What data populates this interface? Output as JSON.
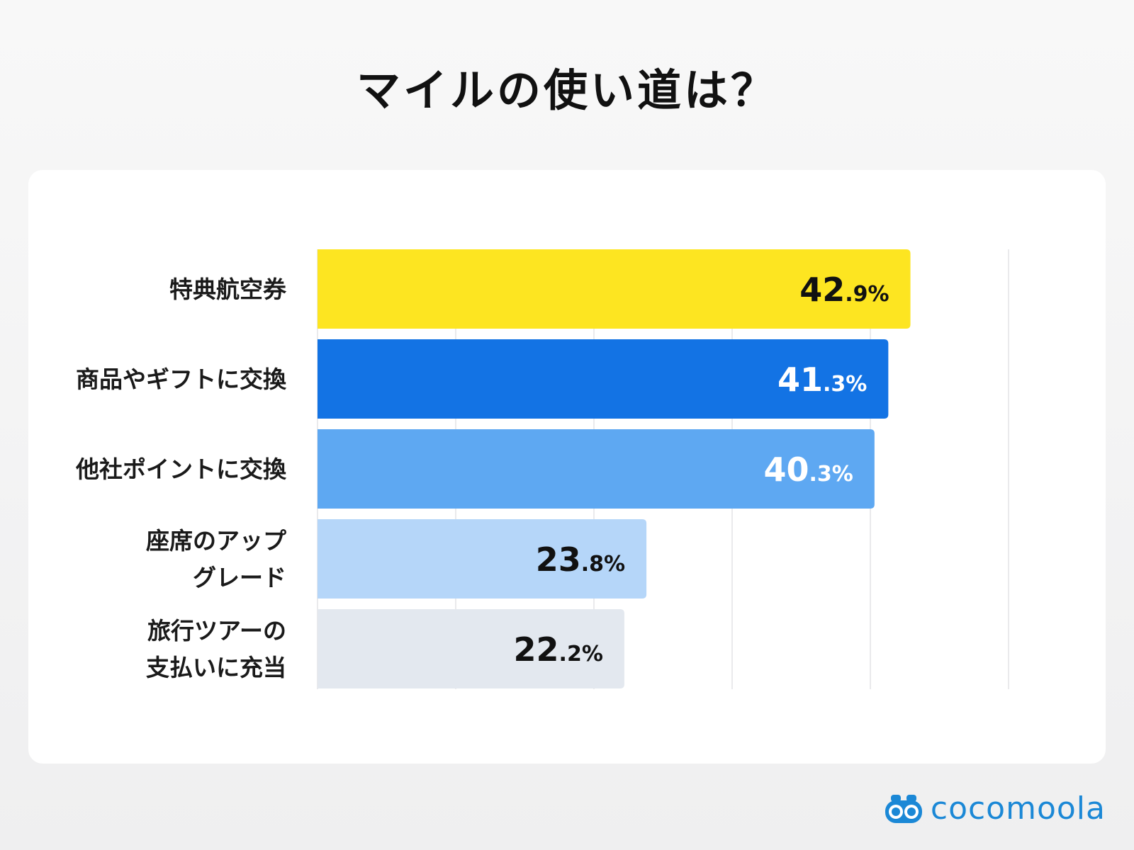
{
  "title": "マイルの使い道は？",
  "brand": {
    "name": "cocomoola",
    "logo_icon": "binoculars-icon",
    "color": "#1b88d6"
  },
  "chart_data": {
    "type": "bar",
    "orientation": "horizontal",
    "title": "マイルの使い道は？",
    "unit": "%",
    "xlim": [
      0,
      50
    ],
    "grid": true,
    "categories": [
      [
        "特典航空券"
      ],
      [
        "商品やギフトに交換"
      ],
      [
        "他社ポイントに交換"
      ],
      [
        "座席のアップ",
        "グレード"
      ],
      [
        "旅行ツアーの",
        "支払いに充当"
      ]
    ],
    "values": [
      42.9,
      41.3,
      40.3,
      23.8,
      22.2
    ],
    "bar_colors": [
      "#fde521",
      "#1373e4",
      "#5ea8f2",
      "#b5d6f9",
      "#e3e8ef"
    ],
    "value_label_colors": [
      "#111111",
      "#ffffff",
      "#ffffff",
      "#111111",
      "#111111"
    ]
  }
}
